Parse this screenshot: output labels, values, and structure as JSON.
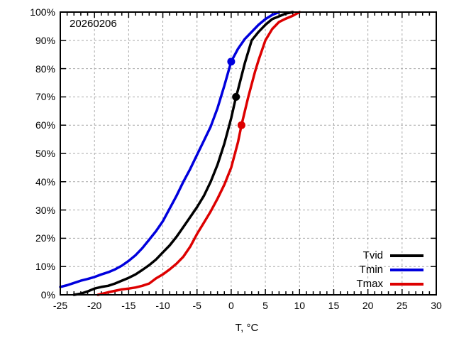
{
  "figure": {
    "annotation": "20260206",
    "background": "#ffffff",
    "border_color": "#000000",
    "grid_color": "#a9a9a9"
  },
  "chart_data": {
    "type": "line",
    "title": "",
    "xlabel": "T, °C",
    "ylabel": "",
    "annotation": "20260206",
    "grid": true,
    "legend_position": "bottom-right",
    "xlim": [
      -25,
      30
    ],
    "ylim": [
      0,
      100
    ],
    "x_ticks": [
      -25,
      -20,
      -15,
      -10,
      -5,
      0,
      5,
      10,
      15,
      20,
      25,
      30
    ],
    "x_tick_labels": [
      "-25",
      "-20",
      "-15",
      "-10",
      "-5",
      "0",
      "5",
      "10",
      "15",
      "20",
      "25",
      "30"
    ],
    "x_minor_tick_step": 1,
    "y_ticks": [
      0,
      10,
      20,
      30,
      40,
      50,
      60,
      70,
      80,
      90,
      100
    ],
    "y_tick_labels": [
      "0%",
      "10%",
      "20%",
      "30%",
      "40%",
      "50%",
      "60%",
      "70%",
      "80%",
      "90%",
      "100%"
    ],
    "series": [
      {
        "name": "Tvid",
        "color": "#000000",
        "marker": {
          "t": 0.7,
          "pct": 70
        },
        "points": [
          [
            -23,
            0
          ],
          [
            -22,
            0.4
          ],
          [
            -21,
            1.2
          ],
          [
            -20,
            2.2
          ],
          [
            -19,
            2.8
          ],
          [
            -18,
            3.2
          ],
          [
            -17,
            4
          ],
          [
            -16,
            5
          ],
          [
            -15,
            6
          ],
          [
            -14,
            7.2
          ],
          [
            -13,
            8.8
          ],
          [
            -12,
            10.5
          ],
          [
            -11,
            12.5
          ],
          [
            -10,
            15
          ],
          [
            -9,
            17.5
          ],
          [
            -8,
            20.5
          ],
          [
            -7,
            24
          ],
          [
            -6,
            27.5
          ],
          [
            -5,
            31
          ],
          [
            -4,
            35
          ],
          [
            -3,
            40
          ],
          [
            -2,
            46
          ],
          [
            -1,
            53.5
          ],
          [
            0,
            62.5
          ],
          [
            0.7,
            70
          ],
          [
            1,
            72.5
          ],
          [
            2,
            82
          ],
          [
            3,
            90
          ],
          [
            4,
            93
          ],
          [
            5,
            95.5
          ],
          [
            6,
            97.5
          ],
          [
            7,
            98.5
          ],
          [
            8,
            99.5
          ],
          [
            9,
            100
          ]
        ]
      },
      {
        "name": "Tmin",
        "color": "#0000dd",
        "marker": {
          "t": 0,
          "pct": 82.5
        },
        "points": [
          [
            -25,
            2.8
          ],
          [
            -24,
            3.4
          ],
          [
            -23,
            4.2
          ],
          [
            -22,
            5
          ],
          [
            -21,
            5.6
          ],
          [
            -20,
            6.3
          ],
          [
            -19,
            7.2
          ],
          [
            -18,
            8
          ],
          [
            -17,
            9
          ],
          [
            -16,
            10.3
          ],
          [
            -15,
            12
          ],
          [
            -14,
            14
          ],
          [
            -13,
            16.5
          ],
          [
            -12,
            19.5
          ],
          [
            -11,
            22.5
          ],
          [
            -10,
            26
          ],
          [
            -9,
            30.5
          ],
          [
            -8,
            35
          ],
          [
            -7,
            40
          ],
          [
            -6,
            44.5
          ],
          [
            -5,
            49.5
          ],
          [
            -4,
            54.5
          ],
          [
            -3,
            59.5
          ],
          [
            -2,
            66
          ],
          [
            -1,
            74
          ],
          [
            0,
            82.5
          ],
          [
            1,
            87
          ],
          [
            2,
            90.5
          ],
          [
            3,
            93
          ],
          [
            4,
            95.5
          ],
          [
            5,
            97.5
          ],
          [
            6,
            99
          ],
          [
            7,
            100
          ]
        ]
      },
      {
        "name": "Tmax",
        "color": "#dd0000",
        "marker": {
          "t": 1.5,
          "pct": 60
        },
        "points": [
          [
            -19.5,
            0
          ],
          [
            -19,
            0.3
          ],
          [
            -18,
            0.9
          ],
          [
            -17,
            1.4
          ],
          [
            -16,
            1.9
          ],
          [
            -15,
            2.2
          ],
          [
            -14,
            2.6
          ],
          [
            -13,
            3.2
          ],
          [
            -12,
            4
          ],
          [
            -11,
            5.8
          ],
          [
            -10,
            7.2
          ],
          [
            -9,
            9
          ],
          [
            -8,
            11
          ],
          [
            -7,
            13.5
          ],
          [
            -6,
            17
          ],
          [
            -5,
            21.5
          ],
          [
            -4,
            25.5
          ],
          [
            -3,
            29.5
          ],
          [
            -2,
            34
          ],
          [
            -1,
            39
          ],
          [
            0,
            45
          ],
          [
            1,
            54
          ],
          [
            1.5,
            60
          ],
          [
            2,
            65
          ],
          [
            2.5,
            70
          ],
          [
            3,
            74.5
          ],
          [
            3.5,
            79
          ],
          [
            4,
            83
          ],
          [
            5,
            90
          ],
          [
            6,
            94
          ],
          [
            7,
            96.5
          ],
          [
            8,
            97.7
          ],
          [
            9,
            98.7
          ],
          [
            10,
            100
          ]
        ]
      }
    ]
  }
}
